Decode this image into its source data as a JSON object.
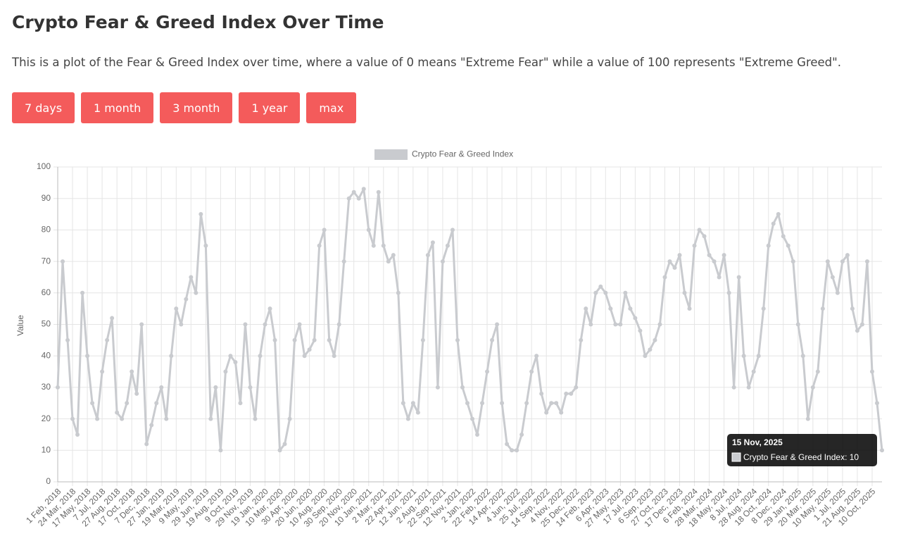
{
  "header": {
    "title": "Crypto Fear & Greed Index Over Time",
    "description": "This is a plot of the Fear & Greed Index over time, where a value of 0 means \"Extreme Fear\" while a value of 100 represents \"Extreme Greed\"."
  },
  "buttons": [
    "7 days",
    "1 month",
    "3 month",
    "1 year",
    "max"
  ],
  "tooltip": {
    "title": "15 Nov, 2025",
    "text": "Crypto Fear & Greed Index: 10"
  },
  "chart_data": {
    "type": "line",
    "y_label": "Value",
    "grid": true,
    "legend": "top",
    "ylim": [
      0,
      100
    ],
    "yticks": [
      0,
      10,
      20,
      30,
      40,
      50,
      60,
      70,
      80,
      90,
      100
    ],
    "categories": [
      "1 Feb, 2018",
      null,
      null,
      "24 Mar, 2018",
      null,
      null,
      "17 May, 2018",
      null,
      null,
      "7 Jul, 2018",
      null,
      null,
      "27 Aug, 2018",
      null,
      null,
      "17 Oct, 2018",
      null,
      null,
      "7 Dec, 2018",
      null,
      null,
      "27 Jan, 2019",
      null,
      null,
      "19 Mar, 2019",
      null,
      null,
      "9 May, 2019",
      null,
      null,
      "29 Jun, 2019",
      null,
      null,
      "19 Aug, 2019",
      null,
      null,
      "9 Oct, 2019",
      null,
      null,
      "29 Nov, 2019",
      null,
      null,
      "19 Jan, 2020",
      null,
      null,
      "10 Mar, 2020",
      null,
      null,
      "30 Apr, 2020",
      null,
      null,
      "20 Jun, 2020",
      null,
      null,
      "10 Aug, 2020",
      null,
      null,
      "30 Sep, 2020",
      null,
      null,
      "20 Nov, 2020",
      null,
      null,
      "10 Jan, 2021",
      null,
      null,
      "2 Mar, 2021",
      null,
      null,
      "22 Apr, 2021",
      null,
      null,
      "12 Jun, 2021",
      null,
      null,
      "2 Aug, 2021",
      null,
      null,
      "22 Sep, 2021",
      null,
      null,
      "12 Nov, 2021",
      null,
      null,
      "2 Jan, 2022",
      null,
      null,
      "22 Feb, 2022",
      null,
      null,
      "14 Apr, 2022",
      null,
      null,
      "4 Jun, 2022",
      null,
      null,
      "25 Jul, 2022",
      null,
      null,
      "14 Sep, 2022",
      null,
      null,
      "4 Nov, 2022",
      null,
      null,
      "25 Dec, 2022",
      null,
      null,
      "14 Feb, 2023",
      null,
      null,
      "6 Apr, 2023",
      null,
      null,
      "27 May, 2023",
      null,
      null,
      "17 Jul, 2023",
      null,
      null,
      "6 Sep, 2023",
      null,
      null,
      "27 Oct, 2023",
      null,
      null,
      "17 Dec, 2023",
      null,
      null,
      "6 Feb, 2024",
      null,
      null,
      "28 Mar, 2024",
      null,
      null,
      "18 May, 2024",
      null,
      null,
      "8 Jul, 2024",
      null,
      null,
      "28 Aug, 2024",
      null,
      null,
      "18 Oct, 2024",
      null,
      null,
      "8 Dec, 2024",
      null,
      null,
      "29 Jan, 2025",
      null,
      null,
      "20 Mar, 2025",
      null,
      null,
      "10 May, 2025",
      null,
      null,
      "1 Jul, 2025",
      null,
      null,
      "21 Aug, 2025",
      null,
      null,
      "10 Oct, 2025",
      null,
      null
    ],
    "series": [
      {
        "name": "Crypto Fear & Greed Index",
        "color": "#c9cbcf",
        "values": [
          30,
          70,
          45,
          20,
          15,
          60,
          40,
          25,
          20,
          35,
          45,
          52,
          22,
          20,
          25,
          35,
          28,
          50,
          12,
          18,
          25,
          30,
          20,
          40,
          55,
          50,
          58,
          65,
          60,
          85,
          75,
          20,
          30,
          10,
          35,
          40,
          38,
          25,
          50,
          30,
          20,
          40,
          50,
          55,
          45,
          10,
          12,
          20,
          45,
          50,
          40,
          42,
          45,
          75,
          80,
          45,
          40,
          50,
          70,
          90,
          92,
          90,
          93,
          80,
          75,
          92,
          75,
          70,
          72,
          60,
          25,
          20,
          25,
          22,
          45,
          72,
          76,
          30,
          70,
          75,
          80,
          45,
          30,
          25,
          20,
          15,
          25,
          35,
          45,
          50,
          25,
          12,
          10,
          10,
          15,
          25,
          35,
          40,
          28,
          22,
          25,
          25,
          22,
          28,
          28,
          30,
          45,
          55,
          50,
          60,
          62,
          60,
          55,
          50,
          50,
          60,
          55,
          52,
          48,
          40,
          42,
          45,
          50,
          65,
          70,
          68,
          72,
          60,
          55,
          75,
          80,
          78,
          72,
          70,
          65,
          72,
          60,
          30,
          65,
          40,
          30,
          35,
          40,
          55,
          75,
          82,
          85,
          78,
          75,
          70,
          50,
          40,
          20,
          30,
          35,
          55,
          70,
          65,
          60,
          70,
          72,
          55,
          48,
          50,
          70,
          35,
          25,
          10
        ]
      }
    ]
  }
}
